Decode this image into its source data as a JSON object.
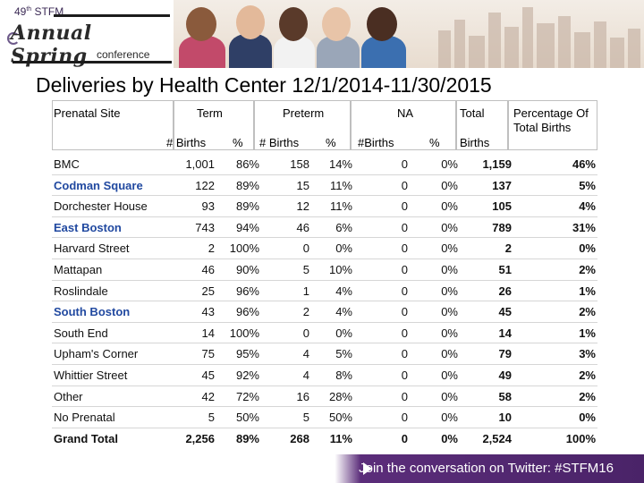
{
  "header": {
    "edition": "49",
    "edition_suffix": "th",
    "org": "STFM",
    "script_title": "Annual Spring",
    "subtitle": "conference"
  },
  "title": "Deliveries by Health Center 12/1/2014-11/30/2015",
  "table": {
    "group_headers": {
      "site": "Prenatal Site",
      "term": "Term",
      "preterm": "Preterm",
      "na": "NA",
      "total": "Total",
      "percentage": "Percentage Of Total Births"
    },
    "sub_headers": {
      "term_births": "# Births",
      "term_pct": "%",
      "preterm_births": "# Births",
      "preterm_pct": "%",
      "na_births": "#Births",
      "na_pct": "%",
      "total_births": "Births"
    },
    "rows": [
      {
        "site": "BMC",
        "term": "1,001",
        "term_pct": "86%",
        "preterm": "158",
        "preterm_pct": "14%",
        "na": "0",
        "na_pct": "0%",
        "total": "1,159",
        "pct": "46%",
        "style": "plain"
      },
      {
        "site": "Codman Square",
        "term": "122",
        "term_pct": "89%",
        "preterm": "15",
        "preterm_pct": "11%",
        "na": "0",
        "na_pct": "0%",
        "total": "137",
        "pct": "5%",
        "style": "blue"
      },
      {
        "site": "Dorchester House",
        "term": "93",
        "term_pct": "89%",
        "preterm": "12",
        "preterm_pct": "11%",
        "na": "0",
        "na_pct": "0%",
        "total": "105",
        "pct": "4%",
        "style": "plain"
      },
      {
        "site": "East Boston",
        "term": "743",
        "term_pct": "94%",
        "preterm": "46",
        "preterm_pct": "6%",
        "na": "0",
        "na_pct": "0%",
        "total": "789",
        "pct": "31%",
        "style": "blue"
      },
      {
        "site": "Harvard Street",
        "term": "2",
        "term_pct": "100%",
        "preterm": "0",
        "preterm_pct": "0%",
        "na": "0",
        "na_pct": "0%",
        "total": "2",
        "pct": "0%",
        "style": "plain"
      },
      {
        "site": "Mattapan",
        "term": "46",
        "term_pct": "90%",
        "preterm": "5",
        "preterm_pct": "10%",
        "na": "0",
        "na_pct": "0%",
        "total": "51",
        "pct": "2%",
        "style": "plain"
      },
      {
        "site": "Roslindale",
        "term": "25",
        "term_pct": "96%",
        "preterm": "1",
        "preterm_pct": "4%",
        "na": "0",
        "na_pct": "0%",
        "total": "26",
        "pct": "1%",
        "style": "plain"
      },
      {
        "site": "South Boston",
        "term": "43",
        "term_pct": "96%",
        "preterm": "2",
        "preterm_pct": "4%",
        "na": "0",
        "na_pct": "0%",
        "total": "45",
        "pct": "2%",
        "style": "blue"
      },
      {
        "site": "South End",
        "term": "14",
        "term_pct": "100%",
        "preterm": "0",
        "preterm_pct": "0%",
        "na": "0",
        "na_pct": "0%",
        "total": "14",
        "pct": "1%",
        "style": "plain"
      },
      {
        "site": "Upham's Corner",
        "term": "75",
        "term_pct": "95%",
        "preterm": "4",
        "preterm_pct": "5%",
        "na": "0",
        "na_pct": "0%",
        "total": "79",
        "pct": "3%",
        "style": "plain"
      },
      {
        "site": "Whittier Street",
        "term": "45",
        "term_pct": "92%",
        "preterm": "4",
        "preterm_pct": "8%",
        "na": "0",
        "na_pct": "0%",
        "total": "49",
        "pct": "2%",
        "style": "plain"
      },
      {
        "site": "Other",
        "term": "42",
        "term_pct": "72%",
        "preterm": "16",
        "preterm_pct": "28%",
        "na": "0",
        "na_pct": "0%",
        "total": "58",
        "pct": "2%",
        "style": "plain"
      },
      {
        "site": "No Prenatal",
        "term": "5",
        "term_pct": "50%",
        "preterm": "5",
        "preterm_pct": "50%",
        "na": "0",
        "na_pct": "0%",
        "total": "10",
        "pct": "0%",
        "style": "plain"
      },
      {
        "site": "Grand Total",
        "term": "2,256",
        "term_pct": "89%",
        "preterm": "268",
        "preterm_pct": "11%",
        "na": "0",
        "na_pct": "0%",
        "total": "2,524",
        "pct": "100%",
        "style": "total"
      }
    ]
  },
  "footer": {
    "text": "Join the conversation on Twitter: #STFM16"
  },
  "colors": {
    "site_link_blue": "#2149a0",
    "footer_purple": "#4a2368"
  }
}
